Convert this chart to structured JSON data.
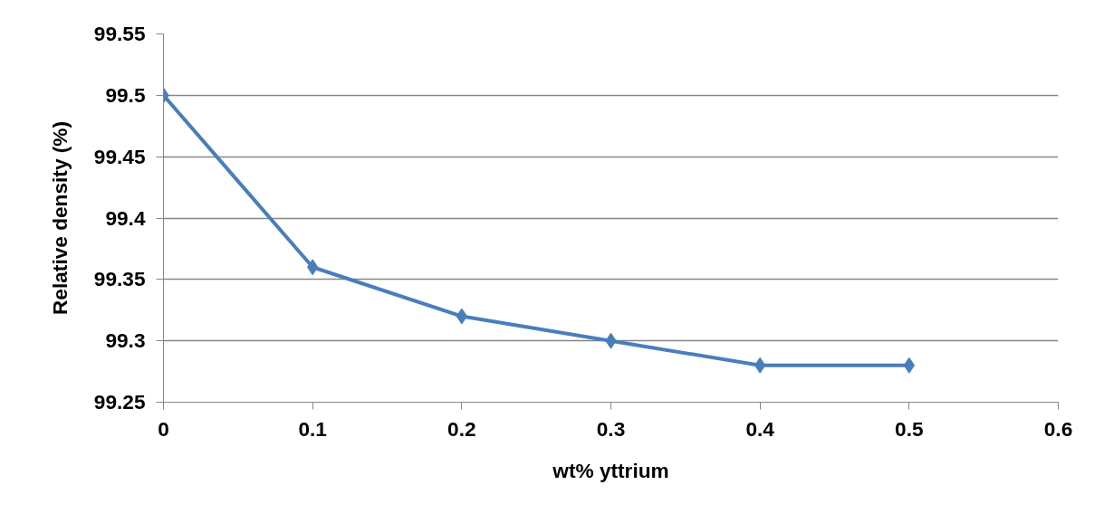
{
  "chart_data": {
    "type": "line",
    "xlabel": "wt% yttrium",
    "ylabel": "Relative density (%)",
    "x": [
      0,
      0.1,
      0.2,
      0.3,
      0.4,
      0.5
    ],
    "series": [
      {
        "color": "#4a7ebb",
        "values": [
          99.5,
          99.36,
          99.32,
          99.3,
          99.28,
          99.28
        ]
      }
    ],
    "xlim": [
      0,
      0.6
    ],
    "xticks": [
      0,
      0.1,
      0.2,
      0.3,
      0.4,
      0.5,
      0.6
    ],
    "ylim": [
      99.25,
      99.55
    ],
    "yticks": [
      99.25,
      99.3,
      99.35,
      99.4,
      99.45,
      99.5,
      99.55
    ],
    "grid": "y",
    "marker": "diamond",
    "line_style": "solid"
  }
}
